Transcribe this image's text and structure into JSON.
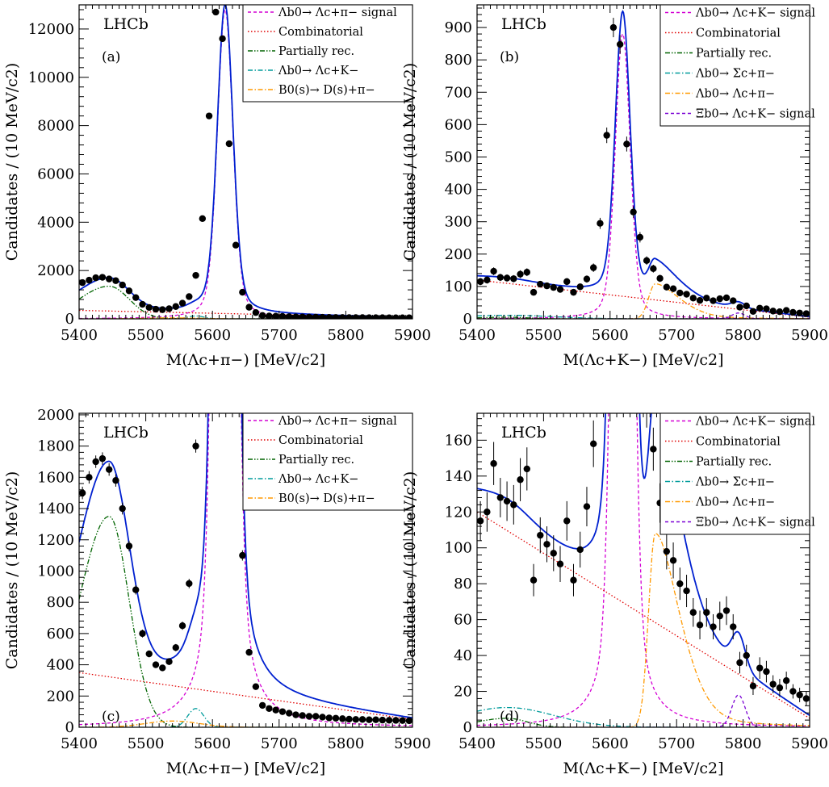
{
  "chart_data": [
    {
      "type": "line",
      "panel": "(a)",
      "experiment_label": "LHCb",
      "xlabel": "M(Λc+π−) [MeV/c2]",
      "ylabel": "Candidates / (10 MeV/c2)",
      "xlim": [
        5400,
        5900
      ],
      "ylim": [
        0,
        13000
      ],
      "xticks": [
        5400,
        5500,
        5600,
        5700,
        5800,
        5900
      ],
      "yticks": [
        0,
        2000,
        4000,
        6000,
        8000,
        10000,
        12000
      ],
      "legend": [
        "Λb0→ Λc+π− signal",
        "Combinatorial",
        "Partially rec.",
        "Λb0→ Λc+K−",
        "B0(s)→ D(s)+π−"
      ],
      "data_points": {
        "x": [
          5405,
          5415,
          5425,
          5435,
          5445,
          5455,
          5465,
          5475,
          5485,
          5495,
          5505,
          5515,
          5525,
          5535,
          5545,
          5555,
          5565,
          5575,
          5585,
          5595,
          5605,
          5615,
          5625,
          5635,
          5645,
          5655,
          5665,
          5675,
          5685,
          5695,
          5705,
          5715,
          5725,
          5735,
          5745,
          5755,
          5765,
          5775,
          5785,
          5795,
          5805,
          5815,
          5825,
          5835,
          5845,
          5855,
          5865,
          5875,
          5885,
          5895
        ],
        "y": [
          1500,
          1600,
          1700,
          1720,
          1650,
          1580,
          1400,
          1160,
          880,
          600,
          470,
          400,
          380,
          420,
          510,
          650,
          920,
          1800,
          4150,
          8400,
          12700,
          11600,
          7250,
          3050,
          1100,
          480,
          260,
          140,
          120,
          110,
          100,
          90,
          80,
          75,
          70,
          70,
          65,
          60,
          58,
          55,
          52,
          50,
          50,
          48,
          48,
          46,
          45,
          44,
          43,
          42
        ],
        "yerr": [
          40,
          40,
          40,
          40,
          40,
          40,
          38,
          34,
          30,
          25,
          22,
          20,
          20,
          21,
          23,
          26,
          30,
          42,
          65,
          92,
          113,
          108,
          85,
          55,
          33,
          22,
          16,
          12,
          11,
          11,
          10,
          10,
          9,
          9,
          8,
          8,
          8,
          8,
          8,
          7,
          7,
          7,
          7,
          7,
          7,
          7,
          7,
          7,
          7,
          7
        ]
      },
      "series": [
        {
          "name": "Λb0→ Λc+π− signal",
          "color": "#d400d4",
          "style": "dashed",
          "component": "signal",
          "peak": 5619,
          "width": 11.5,
          "amplitude": 12800
        },
        {
          "name": "Combinatorial",
          "color": "#e00000",
          "style": "dotted",
          "component": "linear",
          "y0": 350,
          "y1": 50
        },
        {
          "name": "Partially rec.",
          "color": "#006400",
          "style": "dashdotdot",
          "component": "partial",
          "center": 5445,
          "amplitude": 1350,
          "left_sigma": 45,
          "right_sigma": 30
        },
        {
          "name": "Λb0→ Λc+K−",
          "color": "#009b9b",
          "style": "dashdot",
          "component": "gauss",
          "center": 5575,
          "sigma": 12,
          "amplitude": 120
        },
        {
          "name": "B0(s)→ D(s)+π−",
          "color": "#ff9900",
          "style": "dashdot",
          "component": "gauss",
          "center": 5540,
          "sigma": 40,
          "amplitude": 40
        },
        {
          "name": "Total fit",
          "color": "#0020d0",
          "style": "solid",
          "component": "total"
        }
      ]
    },
    {
      "type": "line",
      "panel": "(b)",
      "experiment_label": "LHCb",
      "xlabel": "M(Λc+K−) [MeV/c2]",
      "ylabel": "Candidates / (10 MeV/c2)",
      "xlim": [
        5400,
        5900
      ],
      "ylim": [
        0,
        970
      ],
      "xticks": [
        5400,
        5500,
        5600,
        5700,
        5800,
        5900
      ],
      "yticks": [
        0,
        100,
        200,
        300,
        400,
        500,
        600,
        700,
        800,
        900
      ],
      "legend": [
        "Λb0→ Λc+K− signal",
        "Combinatorial",
        "Partially rec.",
        "Λb0→ Σc+π−",
        "Λb0→ Λc+π−",
        "Ξb0→ Λc+K− signal"
      ],
      "data_points": {
        "x": [
          5405,
          5415,
          5425,
          5435,
          5445,
          5455,
          5465,
          5475,
          5485,
          5495,
          5505,
          5515,
          5525,
          5535,
          5545,
          5555,
          5565,
          5575,
          5585,
          5595,
          5605,
          5615,
          5625,
          5635,
          5645,
          5655,
          5665,
          5675,
          5685,
          5695,
          5705,
          5715,
          5725,
          5735,
          5745,
          5755,
          5765,
          5775,
          5785,
          5795,
          5805,
          5815,
          5825,
          5835,
          5845,
          5855,
          5865,
          5875,
          5885,
          5895
        ],
        "y": [
          115,
          120,
          147,
          128,
          126,
          124,
          138,
          144,
          82,
          107,
          102,
          97,
          91,
          115,
          82,
          99,
          123,
          158,
          295,
          567,
          900,
          848,
          540,
          330,
          252,
          180,
          155,
          125,
          98,
          93,
          80,
          76,
          64,
          57,
          64,
          56,
          62,
          65,
          56,
          36,
          40,
          23,
          33,
          31,
          24,
          22,
          26,
          20,
          18,
          16
        ],
        "yerr": [
          11,
          11,
          12,
          11,
          11,
          11,
          12,
          12,
          9,
          10,
          10,
          10,
          10,
          11,
          9,
          10,
          11,
          13,
          17,
          24,
          30,
          29,
          23,
          18,
          16,
          13,
          12,
          11,
          10,
          10,
          9,
          9,
          8,
          8,
          8,
          7,
          8,
          8,
          7,
          6,
          6,
          5,
          6,
          6,
          5,
          5,
          5,
          4,
          4,
          4
        ]
      },
      "series": [
        {
          "name": "Λb0→ Λc+K− signal",
          "color": "#d400d4",
          "style": "dashed",
          "component": "signal",
          "peak": 5619,
          "width": 11,
          "amplitude": 880
        },
        {
          "name": "Combinatorial",
          "color": "#e00000",
          "style": "dotted",
          "component": "linear",
          "y0": 120,
          "y1": 5
        },
        {
          "name": "Partially rec.",
          "color": "#006400",
          "style": "dashdotdot",
          "component": "partial",
          "center": 5445,
          "amplitude": 5,
          "left_sigma": 45,
          "right_sigma": 30
        },
        {
          "name": "Λb0→ Σc+π−",
          "color": "#009b9b",
          "style": "dashdot",
          "component": "gauss",
          "center": 5445,
          "sigma": 70,
          "amplitude": 11
        },
        {
          "name": "Λb0→ Λc+π−",
          "color": "#ff9900",
          "style": "dashdot",
          "component": "misid",
          "center": 5668,
          "left_sigma": 10,
          "right_sigma": 40,
          "amplitude": 108
        },
        {
          "name": "Ξb0→ Λc+K− signal",
          "color": "#7a00d4",
          "style": "dashed",
          "component": "gauss",
          "center": 5793,
          "sigma": 10,
          "amplitude": 18
        },
        {
          "name": "Total fit",
          "color": "#0020d0",
          "style": "solid",
          "component": "total"
        }
      ]
    },
    {
      "type": "line",
      "panel": "(c)",
      "experiment_label": "LHCb",
      "xlabel": "M(Λc+π−) [MeV/c2]",
      "ylabel": "Candidates / (10 MeV/c2)",
      "xlim": [
        5400,
        5900
      ],
      "ylim": [
        0,
        2010
      ],
      "xticks": [
        5400,
        5500,
        5600,
        5700,
        5800,
        5900
      ],
      "yticks": [
        0,
        200,
        400,
        600,
        800,
        1000,
        1200,
        1400,
        1600,
        1800,
        2000
      ],
      "legend": [
        "Λb0→ Λc+π− signal",
        "Combinatorial",
        "Partially rec.",
        "Λb0→ Λc+K−",
        "B0(s)→ D(s)+π−"
      ],
      "data_points": "same as panel (a), zoomed",
      "series": "same as panel (a)"
    },
    {
      "type": "line",
      "panel": "(d)",
      "experiment_label": "LHCb",
      "xlabel": "M(Λc+K−) [MeV/c2]",
      "ylabel": "Candidates / (10 MeV/c2)",
      "xlim": [
        5400,
        5900
      ],
      "ylim": [
        0,
        175
      ],
      "xticks": [
        5400,
        5500,
        5600,
        5700,
        5800,
        5900
      ],
      "yticks": [
        0,
        20,
        40,
        60,
        80,
        100,
        120,
        140,
        160
      ],
      "legend": [
        "Λb0→ Λc+K− signal",
        "Combinatorial",
        "Partially rec.",
        "Λb0→ Σc+π−",
        "Λb0→ Λc+π−",
        "Ξb0→ Λc+K− signal"
      ],
      "data_points": "same as panel (b), zoomed",
      "series": "same as panel (b)"
    }
  ]
}
